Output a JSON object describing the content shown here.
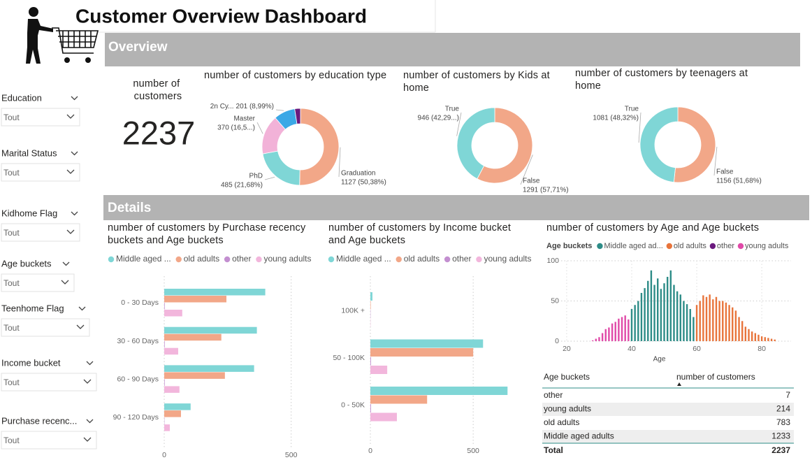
{
  "header": {
    "title": "Customer Overview Dashboard"
  },
  "filters": [
    {
      "label": "Education",
      "value": "Tout"
    },
    {
      "label": "Marital Status",
      "value": "Tout"
    },
    {
      "label": "Kidhome Flag",
      "value": "Tout"
    },
    {
      "label": "Age buckets",
      "value": "Tout"
    },
    {
      "label": "Teenhome Flag",
      "value": "Tout"
    },
    {
      "label": "Income bucket",
      "value": "Tout"
    },
    {
      "label": "Purchase recenc...",
      "value": "Tout"
    }
  ],
  "sections": [
    "Overview",
    "Details"
  ],
  "card": {
    "label": "number of customers",
    "value": 2237
  },
  "chart_data": [
    {
      "type": "donut",
      "title": "number of customers by education type",
      "categories": [
        "Graduation",
        "PhD",
        "Master",
        "2n Cy...",
        null
      ],
      "values": [
        1127,
        485,
        370,
        201,
        54
      ],
      "value_labels": [
        "1127 (50,38%)",
        "485 (21,68%)",
        "370 (16,5...)",
        "201 (8,99%)",
        null
      ],
      "colors": [
        "#f2a788",
        "#7fd6d6",
        "#f2b2d8",
        "#3ba8e6",
        "#6b1a7e"
      ]
    },
    {
      "type": "donut",
      "title": "number of customers by Kids at home",
      "categories": [
        "False",
        "True"
      ],
      "values": [
        1291,
        946
      ],
      "value_labels": [
        "1291 (57,71%)",
        "946 (42,29...)"
      ],
      "colors": [
        "#f2a788",
        "#7fd6d6"
      ]
    },
    {
      "type": "donut",
      "title": "number of customers by teenagers at home",
      "categories": [
        "False",
        "True"
      ],
      "values": [
        1156,
        1081
      ],
      "value_labels": [
        "1156 (51,68%)",
        "1081 (48,32%)"
      ],
      "colors": [
        "#f2a788",
        "#7fd6d6"
      ]
    },
    {
      "type": "hbar",
      "title": "number of customers by Purchase recency buckets and Age buckets",
      "categories": [
        "0 - 30 Days",
        "30 - 60 Days",
        "60 - 90 Days",
        "90 - 120 Days"
      ],
      "series": [
        {
          "name": "Middle aged ...",
          "color": "#7fd6d6",
          "values": [
            398,
            365,
            354,
            104
          ]
        },
        {
          "name": "old adults",
          "color": "#f2a788",
          "values": [
            245,
            225,
            239,
            66
          ]
        },
        {
          "name": "other",
          "color": "#c38fd0",
          "values": [
            2,
            2,
            2,
            1
          ]
        },
        {
          "name": "young adults",
          "color": "#f2b6dc",
          "values": [
            71,
            55,
            60,
            22
          ]
        }
      ],
      "xlim": [
        0,
        600
      ],
      "xticks": [
        0,
        500
      ],
      "grid": true
    },
    {
      "type": "hbar",
      "title": "number of customers by Income bucket and Age buckets",
      "categories": [
        "100K +",
        "50 - 100K",
        "0 - 50K"
      ],
      "series": [
        {
          "name": "Middle aged ...",
          "color": "#7fd6d6",
          "values": [
            10,
            548,
            667
          ]
        },
        {
          "name": "old adults",
          "color": "#f2a788",
          "values": [
            2,
            500,
            276
          ]
        },
        {
          "name": "other",
          "color": "#c38fd0",
          "values": [
            1,
            3,
            3
          ]
        },
        {
          "name": "young adults",
          "color": "#f2b6dc",
          "values": [
            1,
            82,
            129
          ]
        }
      ],
      "xlim": [
        0,
        700
      ],
      "xticks": [
        0,
        500
      ],
      "grid": true
    },
    {
      "type": "column",
      "title": "number of customers by Age and Age buckets",
      "legend_title": "Age buckets",
      "xlabel": "Age",
      "x": [
        28,
        29,
        30,
        31,
        32,
        33,
        34,
        35,
        36,
        37,
        38,
        39,
        40,
        41,
        42,
        43,
        44,
        45,
        46,
        47,
        48,
        49,
        50,
        51,
        52,
        53,
        54,
        55,
        56,
        57,
        58,
        59,
        60,
        61,
        62,
        63,
        64,
        65,
        66,
        67,
        68,
        69,
        70,
        71,
        72,
        73,
        74,
        75,
        76,
        77,
        78,
        79,
        80,
        81,
        82,
        83,
        84
      ],
      "series": [
        {
          "name": "Middle aged ad...",
          "color": "#2d8c87",
          "values": [
            null,
            null,
            null,
            null,
            null,
            null,
            null,
            null,
            null,
            null,
            null,
            null,
            40,
            45,
            50,
            60,
            66,
            75,
            88,
            70,
            78,
            65,
            72,
            80,
            88,
            70,
            62,
            58,
            50,
            46,
            40,
            30,
            null,
            null,
            null,
            null,
            null,
            null,
            null,
            null,
            null,
            null,
            null,
            null,
            null,
            null,
            null,
            null,
            null,
            null,
            null,
            null,
            null,
            null,
            null,
            null,
            null
          ]
        },
        {
          "name": "old adults",
          "color": "#e8743b",
          "values": [
            null,
            null,
            null,
            null,
            null,
            null,
            null,
            null,
            null,
            null,
            null,
            null,
            null,
            null,
            null,
            null,
            null,
            null,
            null,
            null,
            null,
            null,
            null,
            null,
            null,
            null,
            null,
            null,
            null,
            null,
            null,
            null,
            45,
            50,
            57,
            55,
            58,
            52,
            55,
            50,
            50,
            48,
            45,
            42,
            38,
            30,
            25,
            18,
            15,
            12,
            10,
            8,
            6,
            5,
            4,
            3,
            2
          ]
        },
        {
          "name": "other",
          "color": "#6b1a7e",
          "values": [
            null,
            null,
            null,
            null,
            null,
            null,
            null,
            null,
            null,
            null,
            null,
            null,
            null,
            null,
            null,
            null,
            null,
            null,
            null,
            null,
            null,
            null,
            null,
            null,
            null,
            null,
            null,
            null,
            null,
            null,
            null,
            null,
            null,
            null,
            null,
            null,
            null,
            null,
            null,
            null,
            null,
            null,
            null,
            null,
            null,
            null,
            null,
            null,
            null,
            null,
            null,
            null,
            null,
            null,
            null,
            null,
            null
          ]
        },
        {
          "name": "young adults",
          "color": "#e04aa8",
          "values": [
            1,
            3,
            5,
            10,
            15,
            17,
            22,
            24,
            28,
            30,
            32,
            27,
            null,
            null,
            null,
            null,
            null,
            null,
            null,
            null,
            null,
            null,
            null,
            null,
            null,
            null,
            null,
            null,
            null,
            null,
            null,
            null,
            null,
            null,
            null,
            null,
            null,
            null,
            null,
            null,
            null,
            null,
            null,
            null,
            null,
            null,
            null,
            null,
            null,
            null,
            null,
            null,
            null,
            null,
            null,
            null,
            null
          ]
        }
      ],
      "xlim": [
        14,
        89
      ],
      "xticks": [
        20,
        40,
        60,
        80
      ],
      "ylim": [
        0,
        100
      ],
      "yticks": [
        0,
        50,
        100
      ],
      "grid": true
    }
  ],
  "table": {
    "columns": [
      "Age buckets",
      "number of customers"
    ],
    "rows": [
      [
        "other",
        7
      ],
      [
        "young adults",
        214
      ],
      [
        "old adults",
        783
      ],
      [
        "Middle aged adults",
        1233
      ]
    ],
    "total": [
      "Total",
      2237
    ]
  }
}
